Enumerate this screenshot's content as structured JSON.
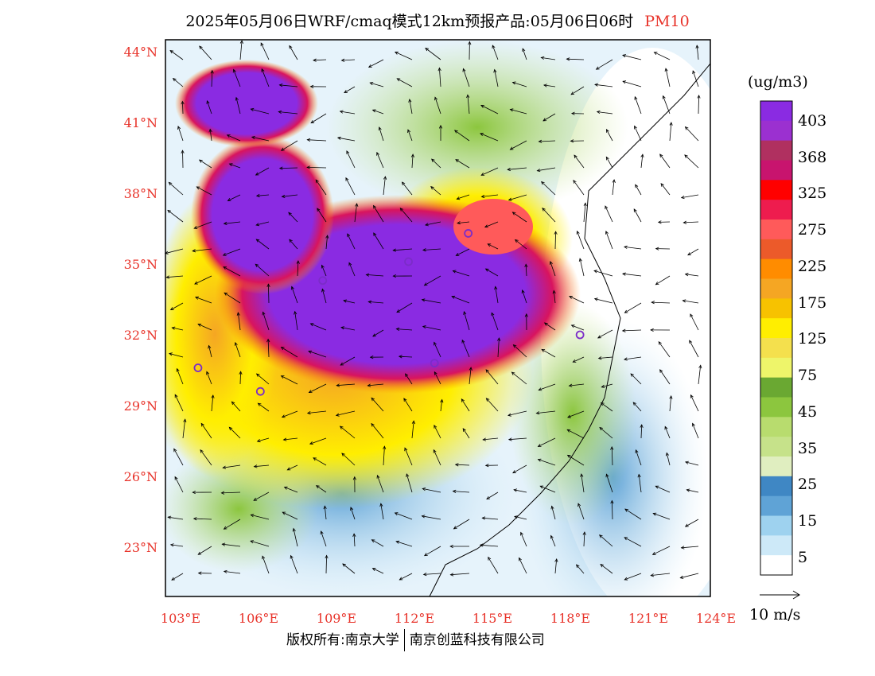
{
  "header": {
    "title": "2025年05月06日WRF/cmaq模式12km预报产品:05月06日06时",
    "pollutant": "PM10"
  },
  "axes": {
    "lat_labels": [
      "44°N",
      "41°N",
      "38°N",
      "35°N",
      "32°N",
      "29°N",
      "26°N",
      "23°N"
    ],
    "lon_labels": [
      "103°E",
      "106°E",
      "109°E",
      "112°E",
      "115°E",
      "118°E",
      "121°E",
      "124°E"
    ]
  },
  "colorbar": {
    "unit": "(ug/m3)",
    "tick_labels": [
      "403",
      "368",
      "325",
      "275",
      "225",
      "175",
      "125",
      "75",
      "45",
      "35",
      "25",
      "15",
      "5"
    ],
    "colors": [
      "#8a2be2",
      "#9b30d0",
      "#b03060",
      "#c8146e",
      "#ff0000",
      "#ee1c4e",
      "#ff5a5a",
      "#ec5a2a",
      "#ff8c00",
      "#f5a623",
      "#f7c200",
      "#ffee00",
      "#f4e04d",
      "#eef56a",
      "#6aa832",
      "#8cc63e",
      "#b8dc6e",
      "#c6e28a",
      "#e0eec0",
      "#3f87c4",
      "#5fa3d6",
      "#9ed2ef",
      "#cde9f8",
      "#ffffff"
    ]
  },
  "wind_legend": {
    "label": "10 m/s"
  },
  "footer": {
    "left": "版权所有:南京大学",
    "right": "南京创蓝科技有限公司"
  },
  "map": {
    "city_marker_color": "#7b2cc8",
    "cities": [
      {
        "lon": 112.2,
        "lat": 35.1
      },
      {
        "lon": 118.8,
        "lat": 32.0
      },
      {
        "lon": 113.2,
        "lat": 30.8
      },
      {
        "lon": 114.5,
        "lat": 36.3
      },
      {
        "lon": 108.9,
        "lat": 34.3
      },
      {
        "lon": 104.1,
        "lat": 30.6
      },
      {
        "lon": 106.5,
        "lat": 29.6
      }
    ],
    "wind_sample_directions_deg": [
      225,
      200
    ]
  }
}
